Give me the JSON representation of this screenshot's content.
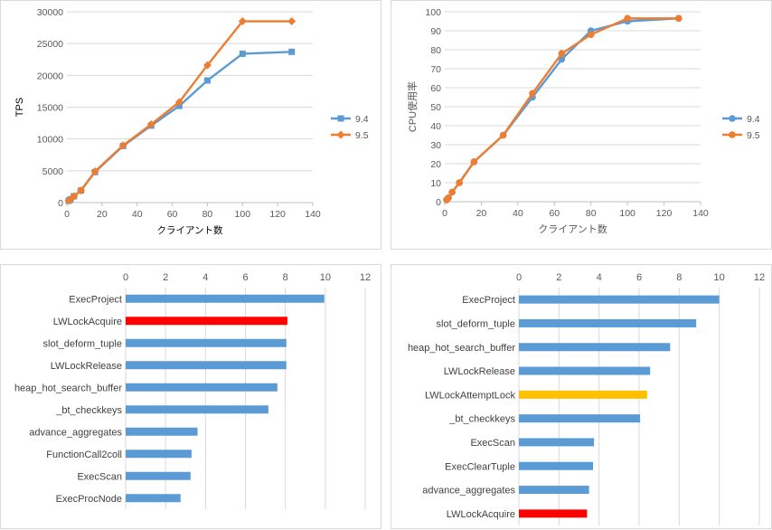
{
  "colors": {
    "series_94": "#5b9bd5",
    "series_95": "#ed7d31",
    "bar_default": "#5b9bd5",
    "bar_red": "#ff0000",
    "bar_yellow": "#ffc000",
    "gridline": "#d9d9d9"
  },
  "chart_data": [
    {
      "type": "line",
      "ylabel": "TPS",
      "xlabel": "クライアント数",
      "xlim": [
        0,
        140
      ],
      "ylim": [
        0,
        30000
      ],
      "xticks": [
        "0",
        "20",
        "40",
        "60",
        "80",
        "100",
        "120",
        "140"
      ],
      "yticks": [
        "0",
        "5000",
        "10000",
        "15000",
        "20000",
        "25000",
        "30000"
      ],
      "legend": "right",
      "grid": true,
      "series": [
        {
          "name": "9.4",
          "marker": "square",
          "color": "#5b9bd5",
          "x": [
            1,
            2,
            4,
            8,
            16,
            32,
            48,
            64,
            80,
            100,
            128
          ],
          "y": [
            300,
            500,
            1000,
            1900,
            4800,
            8900,
            12100,
            15200,
            19200,
            23400,
            23700
          ]
        },
        {
          "name": "9.5",
          "marker": "diamond",
          "color": "#ed7d31",
          "x": [
            1,
            2,
            4,
            8,
            16,
            32,
            48,
            64,
            80,
            100,
            128
          ],
          "y": [
            300,
            500,
            1000,
            1900,
            4900,
            9000,
            12300,
            15800,
            21600,
            28500,
            28500
          ]
        }
      ]
    },
    {
      "type": "line",
      "ylabel": "CPU使用率",
      "xlabel": "クライアント数",
      "xlim": [
        0,
        140
      ],
      "ylim": [
        0,
        100
      ],
      "xticks": [
        "0",
        "20",
        "40",
        "60",
        "80",
        "100",
        "120",
        "140"
      ],
      "yticks": [
        "0",
        "10",
        "20",
        "30",
        "40",
        "50",
        "60",
        "70",
        "80",
        "90",
        "100"
      ],
      "legend": "right",
      "grid": true,
      "series": [
        {
          "name": "9.4",
          "marker": "circle",
          "color": "#5b9bd5",
          "x": [
            1,
            2,
            4,
            8,
            16,
            32,
            48,
            64,
            80,
            100,
            128
          ],
          "y": [
            1,
            2,
            5,
            10,
            21,
            35,
            55,
            75,
            90,
            95,
            96.5
          ]
        },
        {
          "name": "9.5",
          "marker": "circle",
          "color": "#ed7d31",
          "x": [
            1,
            2,
            4,
            8,
            16,
            32,
            48,
            64,
            80,
            100,
            128
          ],
          "y": [
            1,
            2,
            5,
            10,
            21,
            35,
            57,
            78,
            88,
            96.5,
            96.5
          ]
        }
      ]
    },
    {
      "type": "bar",
      "orientation": "horizontal",
      "xlim": [
        0,
        12
      ],
      "xticks": [
        "0",
        "2",
        "4",
        "6",
        "8",
        "10",
        "12"
      ],
      "categories": [
        "ExecProject",
        "LWLockAcquire",
        "slot_deform_tuple",
        "LWLockRelease",
        "heap_hot_search_buffer",
        "_bt_checkkeys",
        "advance_aggregates",
        "FunctionCall2coll",
        "ExecScan",
        "ExecProcNode"
      ],
      "values": [
        9.95,
        8.1,
        8.05,
        8.05,
        7.6,
        7.15,
        3.6,
        3.3,
        3.25,
        2.75
      ],
      "bar_colors": [
        "#5b9bd5",
        "#ff0000",
        "#5b9bd5",
        "#5b9bd5",
        "#5b9bd5",
        "#5b9bd5",
        "#5b9bd5",
        "#5b9bd5",
        "#5b9bd5",
        "#5b9bd5"
      ]
    },
    {
      "type": "bar",
      "orientation": "horizontal",
      "xlim": [
        0,
        12
      ],
      "xticks": [
        "0",
        "2",
        "4",
        "6",
        "8",
        "10",
        "12"
      ],
      "categories": [
        "ExecProject",
        "slot_deform_tuple",
        "heap_hot_search_buffer",
        "LWLockRelease",
        "LWLockAttemptLock",
        "_bt_checkkeys",
        "ExecScan",
        "ExecClearTuple",
        "advance_aggregates",
        "LWLockAcquire"
      ],
      "values": [
        10.0,
        8.85,
        7.55,
        6.55,
        6.4,
        6.05,
        3.75,
        3.7,
        3.5,
        3.4
      ],
      "bar_colors": [
        "#5b9bd5",
        "#5b9bd5",
        "#5b9bd5",
        "#5b9bd5",
        "#ffc000",
        "#5b9bd5",
        "#5b9bd5",
        "#5b9bd5",
        "#5b9bd5",
        "#ff0000"
      ]
    }
  ]
}
